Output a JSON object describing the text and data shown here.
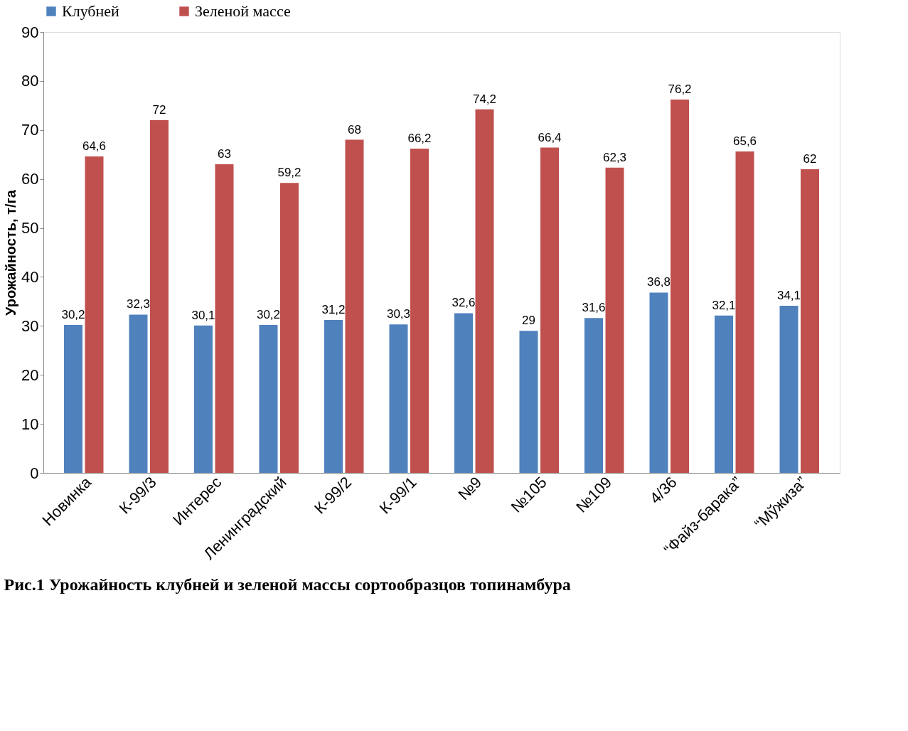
{
  "chart_data": {
    "type": "bar",
    "categories": [
      "Новинка",
      "К-99/3",
      "Интерес",
      "Ленинградский",
      "К-99/2",
      "К-99/1",
      "№9",
      "№105",
      "№109",
      "4/36",
      "“Файз-барака”",
      "“Мўжиза”"
    ],
    "series": [
      {
        "name": "Клубней",
        "color": "#4f81bd",
        "values": [
          30.2,
          32.3,
          30.1,
          30.2,
          31.2,
          30.3,
          32.6,
          29,
          31.6,
          36.8,
          32.1,
          34.1
        ],
        "value_labels": [
          "30,2",
          "32,3",
          "30,1",
          "30,2",
          "31,2",
          "30,3",
          "32,6",
          "29",
          "31,6",
          "36,8",
          "32,1",
          "34,1"
        ]
      },
      {
        "name": "Зеленой массе",
        "color": "#c0504d",
        "values": [
          64.6,
          72,
          63,
          59.2,
          68,
          66.2,
          74.2,
          66.4,
          62.3,
          76.2,
          65.6,
          62
        ],
        "value_labels": [
          "64,6",
          "72",
          "63",
          "59,2",
          "68",
          "66,2",
          "74,2",
          "66,4",
          "62,3",
          "76,2",
          "65,6",
          "62"
        ]
      }
    ],
    "ylabel": "Урожайность, т/га",
    "ylim": [
      0,
      90
    ],
    "yticks": [
      0,
      10,
      20,
      30,
      40,
      50,
      60,
      70,
      80,
      90
    ],
    "grid": false,
    "legend": "top",
    "annotations": [
      "Рис.1 Урожайность клубней и зеленой массы сортообразцов топинамбура"
    ]
  }
}
